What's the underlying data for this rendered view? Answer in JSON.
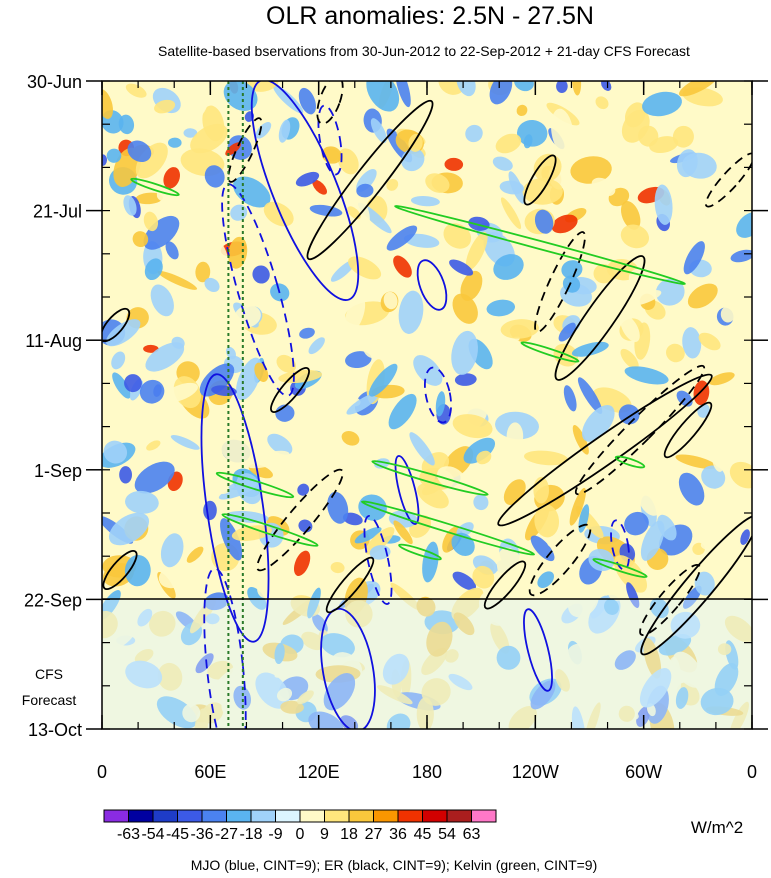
{
  "chart_data": {
    "type": "heatmap",
    "title": "OLR anomalies: 2.5N - 27.5N",
    "subtitle": "Satellite-based bservations from 30-Jun-2012 to 22-Sep-2012 + 21-day CFS Forecast",
    "x_ticks": [
      {
        "lon": 0,
        "label": "0"
      },
      {
        "lon": 60,
        "label": "60E"
      },
      {
        "lon": 120,
        "label": "120E"
      },
      {
        "lon": 180,
        "label": "180"
      },
      {
        "lon": 240,
        "label": "120W"
      },
      {
        "lon": 300,
        "label": "60W"
      },
      {
        "lon": 360,
        "label": "0"
      }
    ],
    "xlim": [
      0,
      360
    ],
    "y_ticks": [
      {
        "day": 0,
        "label": "30-Jun"
      },
      {
        "day": 21,
        "label": "21-Jul"
      },
      {
        "day": 42,
        "label": "11-Aug"
      },
      {
        "day": 63,
        "label": "1-Sep"
      },
      {
        "day": 84,
        "label": "22-Sep"
      },
      {
        "day": 105,
        "label": "13-Oct"
      }
    ],
    "ylim": [
      "30-Jun-2012",
      "13-Oct-2012"
    ],
    "observation_end": "22-Sep-2012",
    "forecast_label": [
      "CFS",
      "Forecast"
    ],
    "colorbar": {
      "labels": [
        "-63",
        "-54",
        "-45",
        "-36",
        "-27",
        "-18",
        "-9",
        "0",
        "9",
        "18",
        "27",
        "36",
        "45",
        "54",
        "63"
      ],
      "colors": [
        "#8a2be2",
        "#0000a0",
        "#1e3cc8",
        "#3c5ae6",
        "#4b82f0",
        "#5ab4f0",
        "#a0d2fa",
        "#dcf5ff",
        "#fffac8",
        "#ffe67d",
        "#fac83c",
        "#fa9600",
        "#f03200",
        "#d20000",
        "#aa1e1e",
        "#ff78c8"
      ],
      "units": "W/m^2"
    },
    "legend": "MJO (blue, CINT=9); ER (black, CINT=9); Kelvin (green, CINT=9)",
    "colors": {
      "mjo": "#1010e0",
      "er": "#000000",
      "kelvin": "#22cc22",
      "reference_lon": "#2a7a2a"
    },
    "reference_lines_lon": [
      70,
      78
    ]
  }
}
